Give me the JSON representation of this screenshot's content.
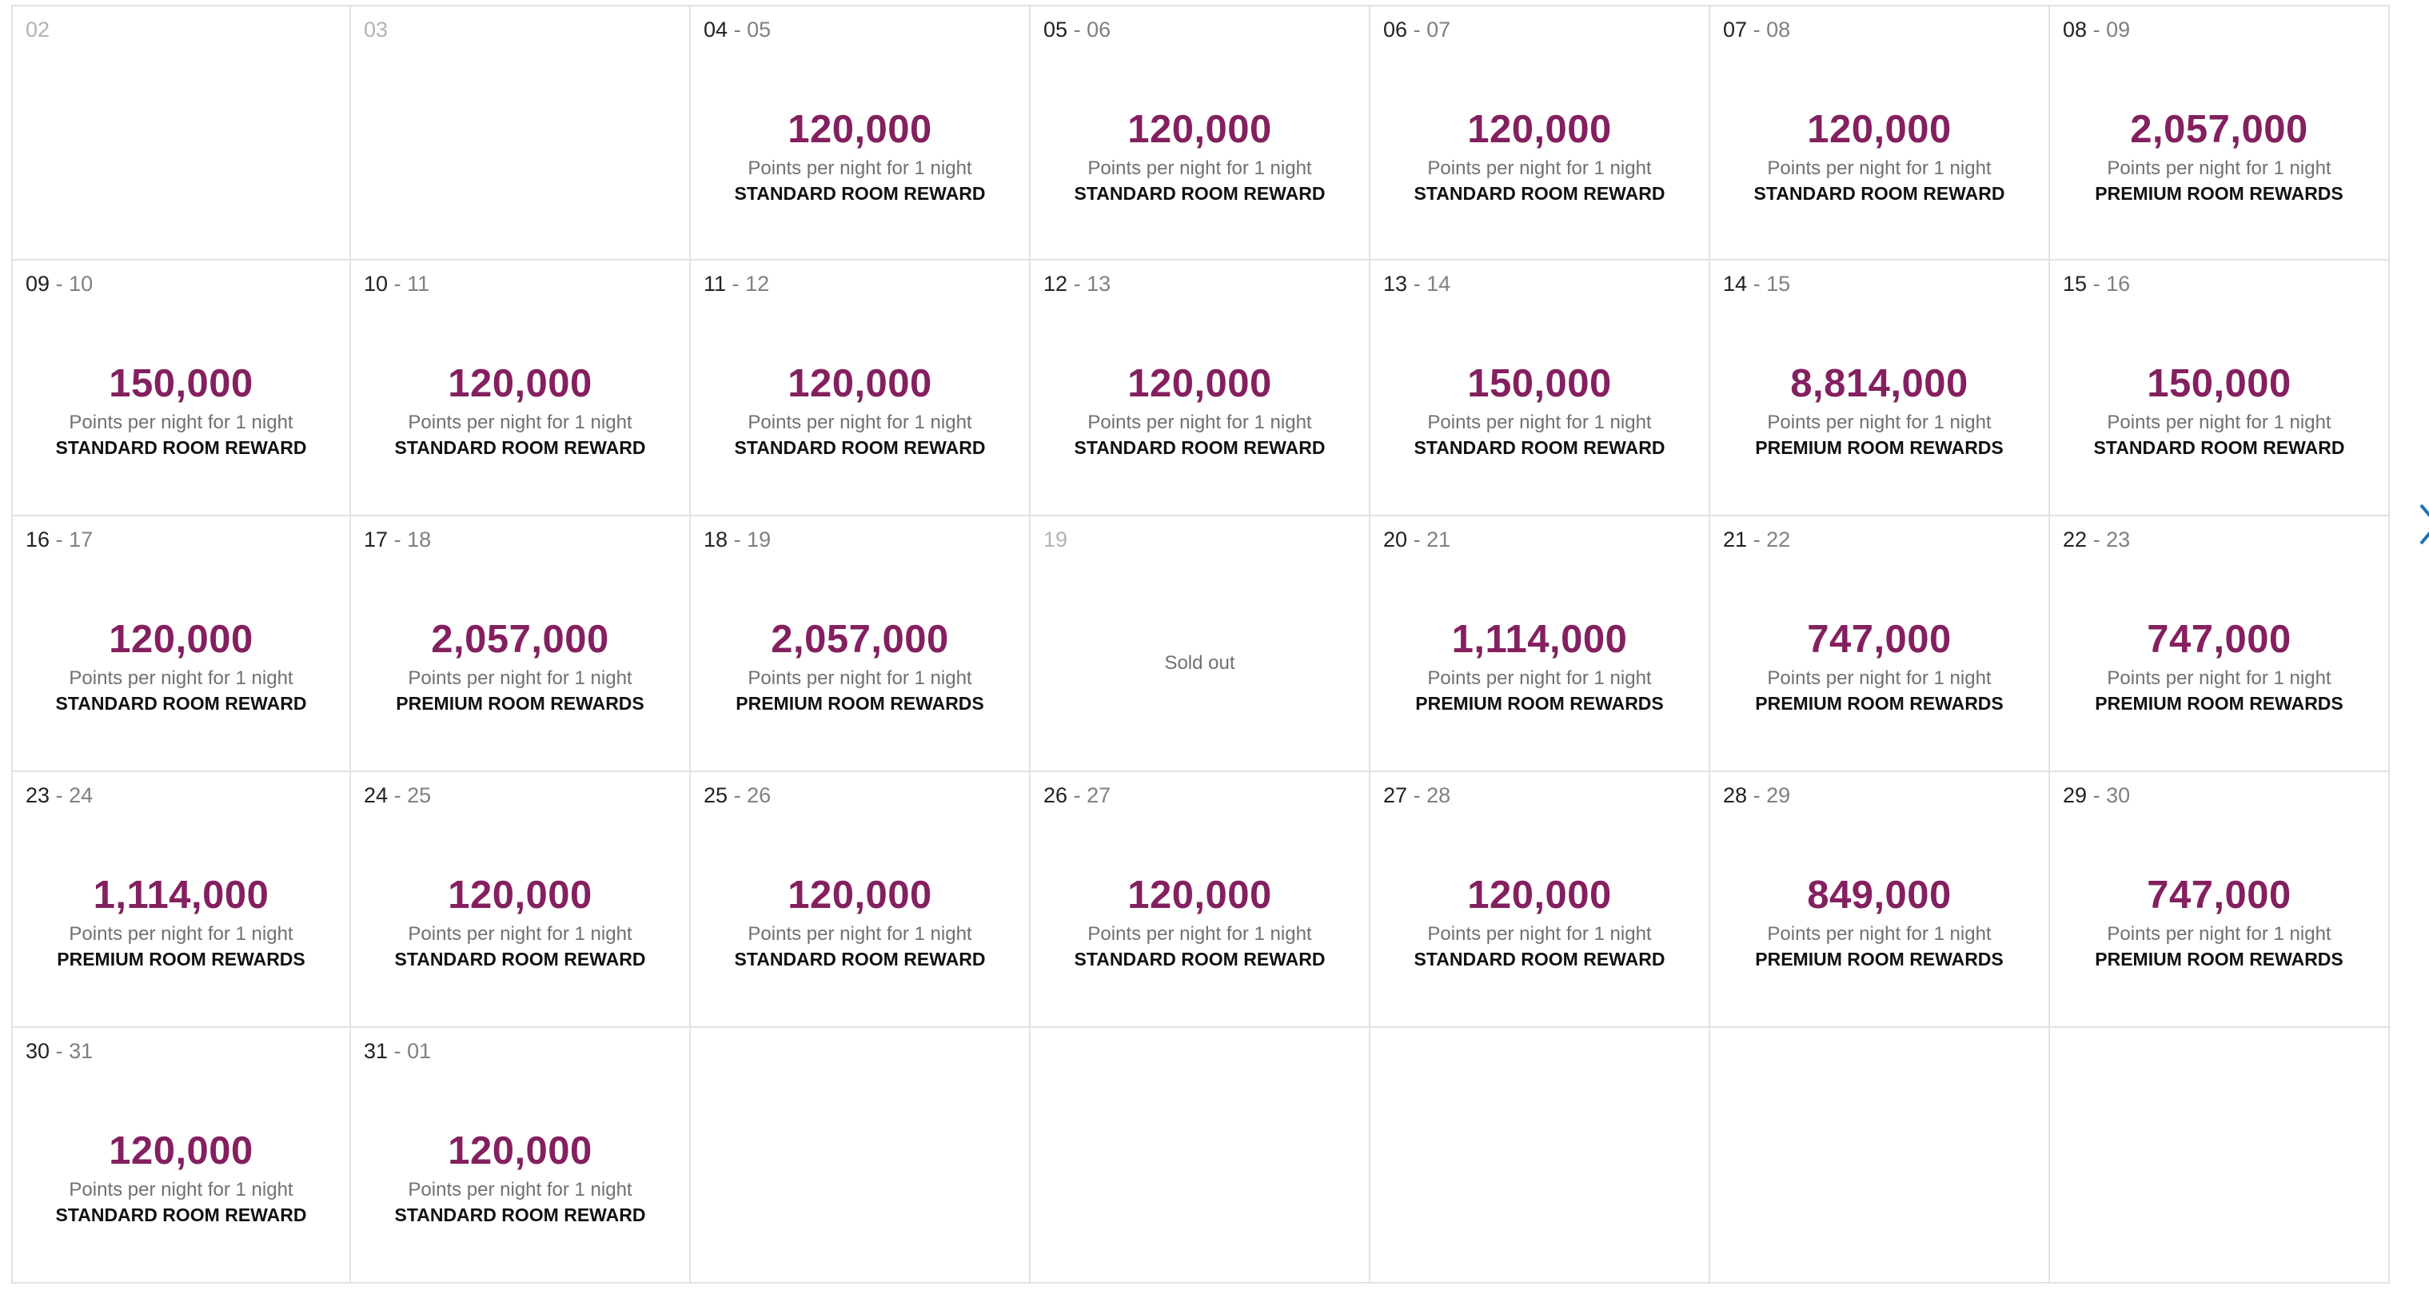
{
  "date_separator": "-",
  "cells": [
    {
      "from": "02"
    },
    {
      "from": "03"
    },
    {
      "from": "04",
      "to": "05",
      "points": "120,000",
      "caption": "Points per night for 1 night",
      "room": "STANDARD ROOM REWARD"
    },
    {
      "from": "05",
      "to": "06",
      "points": "120,000",
      "caption": "Points per night for 1 night",
      "room": "STANDARD ROOM REWARD"
    },
    {
      "from": "06",
      "to": "07",
      "points": "120,000",
      "caption": "Points per night for 1 night",
      "room": "STANDARD ROOM REWARD"
    },
    {
      "from": "07",
      "to": "08",
      "points": "120,000",
      "caption": "Points per night for 1 night",
      "room": "STANDARD ROOM REWARD"
    },
    {
      "from": "08",
      "to": "09",
      "points": "2,057,000",
      "caption": "Points per night for 1 night",
      "room": "PREMIUM ROOM REWARDS"
    },
    {
      "from": "09",
      "to": "10",
      "points": "150,000",
      "caption": "Points per night for 1 night",
      "room": "STANDARD ROOM REWARD"
    },
    {
      "from": "10",
      "to": "11",
      "points": "120,000",
      "caption": "Points per night for 1 night",
      "room": "STANDARD ROOM REWARD"
    },
    {
      "from": "11",
      "to": "12",
      "points": "120,000",
      "caption": "Points per night for 1 night",
      "room": "STANDARD ROOM REWARD"
    },
    {
      "from": "12",
      "to": "13",
      "points": "120,000",
      "caption": "Points per night for 1 night",
      "room": "STANDARD ROOM REWARD"
    },
    {
      "from": "13",
      "to": "14",
      "points": "150,000",
      "caption": "Points per night for 1 night",
      "room": "STANDARD ROOM REWARD"
    },
    {
      "from": "14",
      "to": "15",
      "points": "8,814,000",
      "caption": "Points per night for 1 night",
      "room": "PREMIUM ROOM REWARDS"
    },
    {
      "from": "15",
      "to": "16",
      "points": "150,000",
      "caption": "Points per night for 1 night",
      "room": "STANDARD ROOM REWARD"
    },
    {
      "from": "16",
      "to": "17",
      "points": "120,000",
      "caption": "Points per night for 1 night",
      "room": "STANDARD ROOM REWARD"
    },
    {
      "from": "17",
      "to": "18",
      "points": "2,057,000",
      "caption": "Points per night for 1 night",
      "room": "PREMIUM ROOM REWARDS"
    },
    {
      "from": "18",
      "to": "19",
      "points": "2,057,000",
      "caption": "Points per night for 1 night",
      "room": "PREMIUM ROOM REWARDS"
    },
    {
      "from": "19",
      "status": "Sold out"
    },
    {
      "from": "20",
      "to": "21",
      "points": "1,114,000",
      "caption": "Points per night for 1 night",
      "room": "PREMIUM ROOM REWARDS"
    },
    {
      "from": "21",
      "to": "22",
      "points": "747,000",
      "caption": "Points per night for 1 night",
      "room": "PREMIUM ROOM REWARDS"
    },
    {
      "from": "22",
      "to": "23",
      "points": "747,000",
      "caption": "Points per night for 1 night",
      "room": "PREMIUM ROOM REWARDS"
    },
    {
      "from": "23",
      "to": "24",
      "points": "1,114,000",
      "caption": "Points per night for 1 night",
      "room": "PREMIUM ROOM REWARDS"
    },
    {
      "from": "24",
      "to": "25",
      "points": "120,000",
      "caption": "Points per night for 1 night",
      "room": "STANDARD ROOM REWARD"
    },
    {
      "from": "25",
      "to": "26",
      "points": "120,000",
      "caption": "Points per night for 1 night",
      "room": "STANDARD ROOM REWARD"
    },
    {
      "from": "26",
      "to": "27",
      "points": "120,000",
      "caption": "Points per night for 1 night",
      "room": "STANDARD ROOM REWARD"
    },
    {
      "from": "27",
      "to": "28",
      "points": "120,000",
      "caption": "Points per night for 1 night",
      "room": "STANDARD ROOM REWARD"
    },
    {
      "from": "28",
      "to": "29",
      "points": "849,000",
      "caption": "Points per night for 1 night",
      "room": "PREMIUM ROOM REWARDS"
    },
    {
      "from": "29",
      "to": "30",
      "points": "747,000",
      "caption": "Points per night for 1 night",
      "room": "PREMIUM ROOM REWARDS"
    },
    {
      "from": "30",
      "to": "31",
      "points": "120,000",
      "caption": "Points per night for 1 night",
      "room": "STANDARD ROOM REWARD"
    },
    {
      "from": "31",
      "to": "01",
      "points": "120,000",
      "caption": "Points per night for 1 night",
      "room": "STANDARD ROOM REWARD"
    }
  ]
}
